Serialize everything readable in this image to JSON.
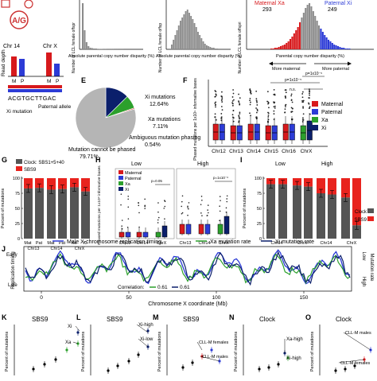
{
  "panel_labels": [
    "E",
    "F",
    "G",
    "H",
    "I",
    "J",
    "K",
    "L",
    "M",
    "N",
    "O"
  ],
  "colors": {
    "maternal": "#d7191c",
    "paternal": "#2c3bd6",
    "xa": "#2ca02c",
    "xi": "#0b1f6b",
    "clock": "#555555",
    "sbs9": "#e8231e",
    "pie_light": "#b5b5b5",
    "pie_dark": "#8d8d8d",
    "hist_gray": "#8c8c8c"
  },
  "top": {
    "allele_top": "A/G",
    "chr14": "Chr 14",
    "chrx": "Chr X",
    "read_depth": "Read depth",
    "m": "M",
    "p": "P",
    "seq": "ACGTGCTTGAC",
    "xi_mutation": "Xi mutation",
    "paternal_allele": "Paternal allele",
    "hist1_xlabel": "Absolute parental copy number disparity (%)",
    "hist1_ylabel": "Number of LCL female offspr",
    "hist2_xlabel": "Absolute parental copy number disparity (%)",
    "hist2_ylabel": "Number of LCL female offsp",
    "hist3_xlabel": "Parental copy number disparity (%)",
    "hist3_ylabel": "Number of LCL female offspri",
    "maternal_xa": "Maternal Xa",
    "count_left": "293",
    "paternal_xi": "Paternal Xi",
    "count_right": "249",
    "more_maternal": "More maternal",
    "more_paternal": "More paternal"
  },
  "pie": {
    "slices": [
      {
        "label": "Xi mutations",
        "pct": "12.64%",
        "value": 12.64
      },
      {
        "label": "Xa mutations",
        "pct": "7.11%",
        "value": 7.11
      },
      {
        "label": "Ambiguous mutation phasing",
        "pct": "0.54%",
        "value": 0.54
      },
      {
        "label": "Mutation cannot be phased",
        "pct": "79.71%",
        "value": 79.71
      }
    ]
  },
  "f": {
    "ylabel": "Phased mutations per 1x10⁹ informative bases",
    "legend": [
      "Maternal",
      "Paternal",
      "Xa",
      "Xi"
    ],
    "categories": [
      "Chr12",
      "Chr13",
      "Chr14",
      "Chr15",
      "Chr16",
      "ChrX"
    ],
    "pvals": [
      "p=1x10⁻⁵",
      "p=1x10⁻⁵",
      "n.s."
    ]
  },
  "g": {
    "legend": [
      "Clock: SBS1+5+40",
      "SBS9"
    ],
    "ylabel": "Percent of mutations",
    "yticks": [
      "100",
      "75",
      "50",
      "25",
      "0"
    ],
    "xlabels": [
      "Mat",
      "Pat",
      "Mat",
      "Pat",
      "Xa",
      "Xi"
    ],
    "groups": [
      "Chr13",
      "Chr14",
      "ChrX"
    ]
  },
  "h": {
    "low": "Low",
    "high": "High",
    "ylabel": "Phased mutations per 1x10⁹ informative bases",
    "legend": [
      "Maternal",
      "Paternal",
      "Xa",
      "Xi"
    ],
    "pvals": [
      "p=0.05",
      "p=1x10⁻⁶"
    ],
    "groups": [
      "Chr13",
      "Chr14",
      "ChrX",
      "Chr13",
      "Chr14",
      "ChrX"
    ]
  },
  "i": {
    "low": "Low",
    "high": "High",
    "ylabel": "Percent of mutations",
    "yticks": [
      "100",
      "75",
      "50",
      "25",
      "0"
    ],
    "groups": [
      "Chr14",
      "ChrX",
      "Chr14",
      "ChrX"
    ],
    "legend": [
      "Clock",
      "SBS9"
    ]
  },
  "j": {
    "legend": [
      "Male X-chromosome replication timing",
      "Xa mutation rate",
      "Xi mutation rate"
    ],
    "left_axis": "Replication timing",
    "early": "Early",
    "late": "Late",
    "right_axis": "Mutation rate",
    "low": "Low",
    "high": "High",
    "xlabel": "Chromosome X coordinate (Mb)",
    "xticks": [
      "0",
      "50",
      "100",
      "150"
    ],
    "correlation_label": "Correlation:",
    "corr_xa": "0.61",
    "corr_xi": "0.61"
  },
  "bottom": {
    "ylabel": "Percent of mutations",
    "k_title": "SBS9",
    "k_labels": [
      "Xi",
      "Xa"
    ],
    "l_title": "SBS9",
    "l_labels": [
      "Xi-high",
      "Xi-low"
    ],
    "m_title": "SBS9",
    "m_labels": [
      "CLL-M females",
      "CLL-M males"
    ],
    "n_title": "Clock",
    "n_labels": [
      "Xa-high",
      "Xi-high"
    ],
    "o_title": "Clock",
    "o_labels": [
      "CLL-M males",
      "CLL-M females"
    ]
  }
}
